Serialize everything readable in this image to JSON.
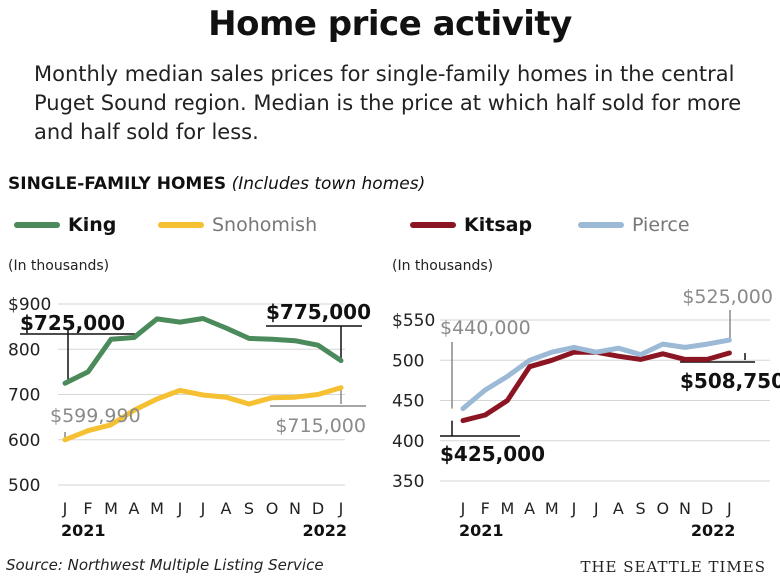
{
  "title": "Home price activity",
  "subtitle": "Monthly median sales prices for single-family homes in the central Puget Sound region. Median is the price at which half sold for more and half sold for less.",
  "section_label": "SINGLE-FAMILY HOMES",
  "section_note": "(Includes town homes)",
  "source": "Source: Northwest Multiple Listing Service",
  "credit": "THE SEATTLE TIMES",
  "colors": {
    "king": "#4a8a5b",
    "snohomish": "#f5c132",
    "kitsap": "#8b1522",
    "pierce": "#9cb9d6"
  },
  "chart_data": [
    {
      "type": "line",
      "units": "(In thousands)",
      "x": [
        "J",
        "F",
        "M",
        "A",
        "M",
        "J",
        "J",
        "A",
        "S",
        "O",
        "N",
        "D",
        "J"
      ],
      "x_years": [
        "2021",
        "2022"
      ],
      "ylim": [
        500,
        900
      ],
      "yticks": [
        "$900",
        "800",
        "700",
        "600",
        "500"
      ],
      "series": [
        {
          "name": "King",
          "color_key": "king",
          "values": [
            725,
            750,
            822,
            826,
            867,
            860,
            868,
            847,
            824,
            822,
            819,
            809,
            775
          ]
        },
        {
          "name": "Snohomish",
          "color_key": "snohomish",
          "values": [
            600,
            620,
            633,
            665,
            690,
            709,
            699,
            694,
            679,
            693,
            694,
            700,
            715
          ]
        }
      ],
      "annotations": [
        {
          "text": "$725,000",
          "bold": true
        },
        {
          "text": "$599,990",
          "bold": false
        },
        {
          "text": "$775,000",
          "bold": true
        },
        {
          "text": "$715,000",
          "bold": false
        }
      ]
    },
    {
      "type": "line",
      "units": "(In thousands)",
      "x": [
        "J",
        "F",
        "M",
        "A",
        "M",
        "J",
        "J",
        "A",
        "S",
        "O",
        "N",
        "D",
        "J"
      ],
      "x_years": [
        "2021",
        "2022"
      ],
      "ylim": [
        350,
        550
      ],
      "yticks": [
        "$550",
        "500",
        "450",
        "400",
        "350"
      ],
      "series": [
        {
          "name": "Kitsap",
          "color_key": "kitsap",
          "values": [
            425,
            432,
            450,
            492,
            500,
            510,
            510,
            505,
            501,
            508,
            501,
            501,
            509
          ]
        },
        {
          "name": "Pierce",
          "color_key": "pierce",
          "values": [
            440,
            463,
            480,
            500,
            510,
            516,
            510,
            515,
            507,
            520,
            516,
            520,
            525
          ]
        }
      ],
      "annotations": [
        {
          "text": "$440,000",
          "bold": false
        },
        {
          "text": "$425,000",
          "bold": true
        },
        {
          "text": "$525,000",
          "bold": false
        },
        {
          "text": "$508,750",
          "bold": true
        }
      ]
    }
  ]
}
